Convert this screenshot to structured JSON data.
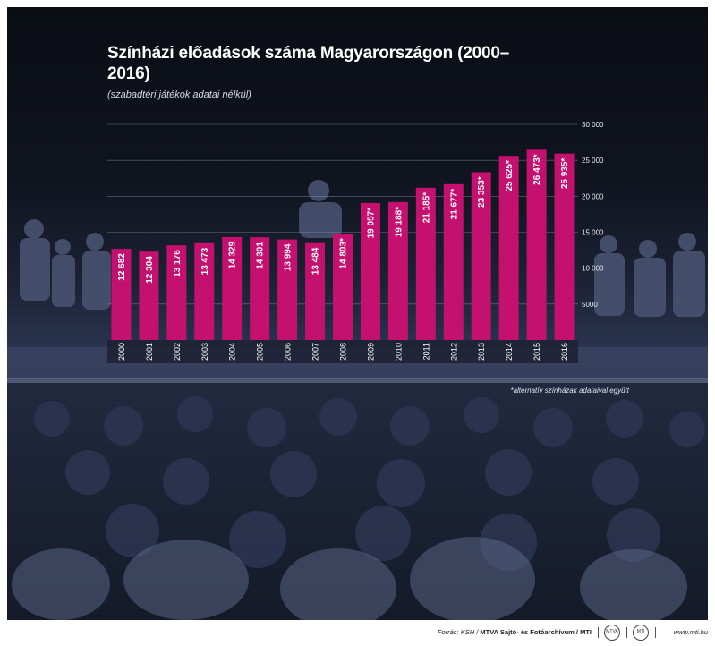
{
  "chart_data": {
    "type": "bar",
    "title": "Színházi előadások száma Magyarországon (2000–2016)",
    "subtitle": "(szabadtéri játékok adatai nélkül)",
    "categories": [
      "2000",
      "2001",
      "2002",
      "2003",
      "2004",
      "2005",
      "2006",
      "2007",
      "2008",
      "2009",
      "2010",
      "2011",
      "2012",
      "2013",
      "2014",
      "2015",
      "2016"
    ],
    "values": [
      12682,
      12304,
      13176,
      13473,
      14329,
      14301,
      13994,
      13484,
      14803,
      19057,
      19188,
      21185,
      21677,
      23353,
      25625,
      26473,
      25935
    ],
    "value_labels": [
      "12 682",
      "12 304",
      "13 176",
      "13 473",
      "14 329",
      "14 301",
      "13 994",
      "13 484",
      "14 803*",
      "19 057*",
      "19 188*",
      "21 185*",
      "21 677*",
      "23 353*",
      "25 625*",
      "26 473*",
      "25 935*"
    ],
    "ylim": [
      0,
      30000
    ],
    "y_ticks": [
      5000,
      10000,
      15000,
      20000,
      25000,
      30000
    ],
    "y_tick_labels": [
      "5000",
      "10 000",
      "15 000",
      "20 000",
      "25 000",
      "30 000"
    ],
    "bar_color": "#c4106e",
    "grid": true,
    "footnote": "*alternatív színházak adataival együtt"
  },
  "footer": {
    "source_prefix": "Forrás: KSH /",
    "source_bold": "MTVA Sajtó- és Fotóarchívum / MTI",
    "logo1": "MTVA",
    "logo2": "MTI",
    "site": "www.mti.hu"
  }
}
